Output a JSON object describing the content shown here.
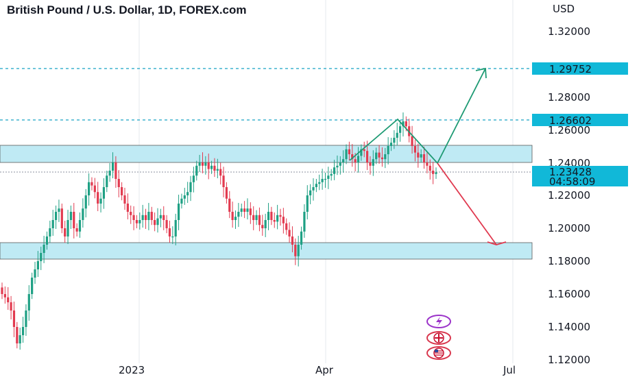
{
  "chart_data": {
    "type": "candlestick",
    "title": "British Pound / U.S. Dollar, 1D, FOREX.com",
    "currency_label": "USD",
    "ylim": [
      1.12,
      1.33
    ],
    "y_ticks": [
      "1.32000",
      "1.28000",
      "1.26000",
      "1.24000",
      "1.22000",
      "1.20000",
      "1.18000",
      "1.16000",
      "1.14000",
      "1.12000"
    ],
    "y_ticks_values": [
      1.32,
      1.28,
      1.26,
      1.24,
      1.22,
      1.2,
      1.18,
      1.16,
      1.14,
      1.12
    ],
    "x_labels": [
      "2023",
      "Apr",
      "Jul"
    ],
    "price_tags": {
      "target_up": "1.29752",
      "resistance": "1.26602",
      "current_price": "1.23428",
      "countdown": "04:58:09"
    },
    "zones": [
      {
        "name": "resistance-zone",
        "from": 1.2395,
        "to": 1.25
      },
      {
        "name": "support-zone",
        "from": 1.1805,
        "to": 1.191
      }
    ],
    "horizontal_levels": [
      1.29752,
      1.26602
    ],
    "scenarios": [
      {
        "name": "bullish-arrow",
        "from_price": 1.2395,
        "to_price": 1.2975
      },
      {
        "name": "bearish-arrow",
        "from_price": 1.2395,
        "to_price": 1.1905
      }
    ],
    "pattern": "head-and-shoulders",
    "candles_close": [
      1.16,
      1.158,
      1.155,
      1.15,
      1.14,
      1.13,
      1.135,
      1.14,
      1.15,
      1.16,
      1.17,
      1.175,
      1.18,
      1.185,
      1.19,
      1.195,
      1.2,
      1.205,
      1.21,
      1.212,
      1.2,
      1.195,
      1.205,
      1.21,
      1.2,
      1.198,
      1.205,
      1.212,
      1.22,
      1.228,
      1.226,
      1.222,
      1.215,
      1.218,
      1.225,
      1.232,
      1.235,
      1.24,
      1.23,
      1.225,
      1.22,
      1.215,
      1.21,
      1.208,
      1.205,
      1.203,
      1.205,
      1.208,
      1.205,
      1.21,
      1.205,
      1.202,
      1.206,
      1.208,
      1.205,
      1.2,
      1.195,
      1.195,
      1.205,
      1.215,
      1.218,
      1.22,
      1.222,
      1.228,
      1.232,
      1.238,
      1.24,
      1.238,
      1.24,
      1.236,
      1.238,
      1.235,
      1.236,
      1.232,
      1.225,
      1.218,
      1.21,
      1.205,
      1.207,
      1.21,
      1.212,
      1.21,
      1.212,
      1.208,
      1.205,
      1.208,
      1.202,
      1.2,
      1.205,
      1.21,
      1.205,
      1.204,
      1.208,
      1.207,
      1.203,
      1.199,
      1.195,
      1.19,
      1.183,
      1.19,
      1.198,
      1.21,
      1.22,
      1.223,
      1.225,
      1.227,
      1.228,
      1.23,
      1.23,
      1.232,
      1.233,
      1.237,
      1.238,
      1.24,
      1.242,
      1.248,
      1.245,
      1.242,
      1.24,
      1.244,
      1.248,
      1.247,
      1.24,
      1.238,
      1.242,
      1.246,
      1.243,
      1.242,
      1.245,
      1.25,
      1.252,
      1.255,
      1.258,
      1.262,
      1.265,
      1.262,
      1.256,
      1.25,
      1.246,
      1.243,
      1.245,
      1.24,
      1.238,
      1.235,
      1.233,
      1.234
    ]
  }
}
